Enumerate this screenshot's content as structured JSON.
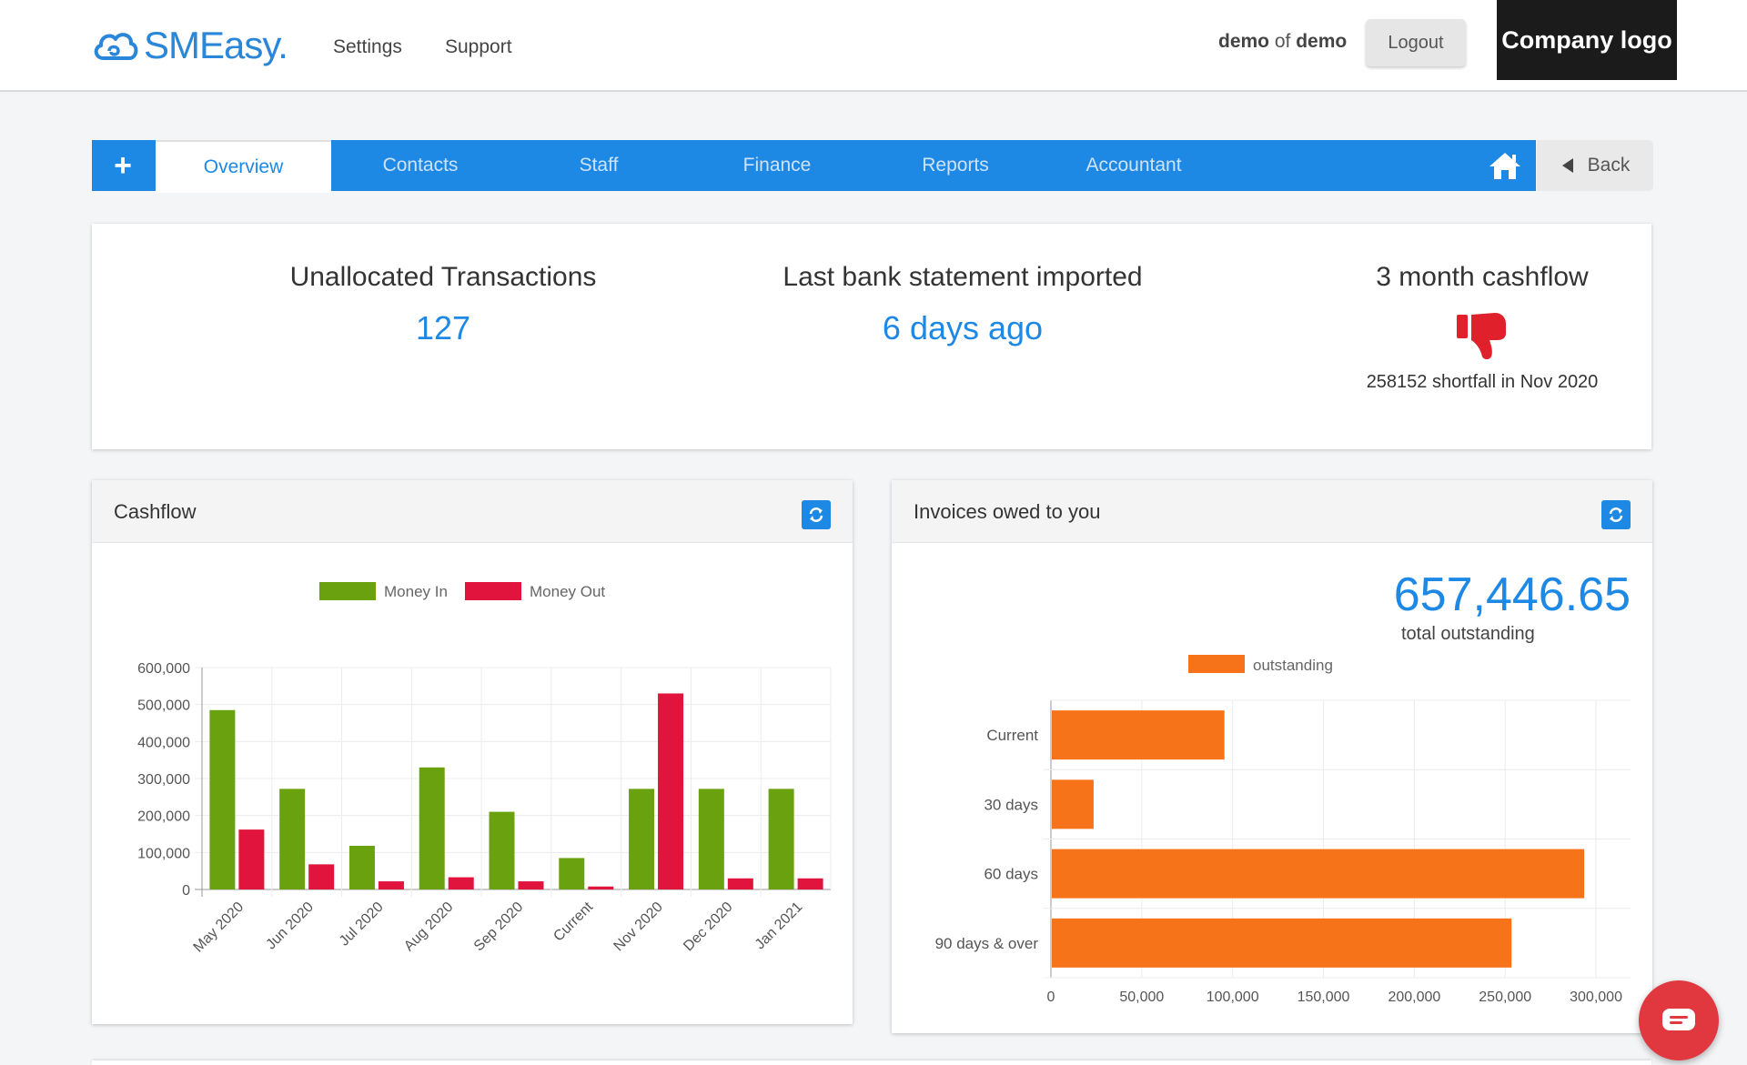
{
  "header": {
    "logo_text": "SMEasy.",
    "nav": [
      "Settings",
      "Support"
    ],
    "user_name": "demo",
    "user_of": "of",
    "user_org": "demo",
    "logout_label": "Logout",
    "company_logo": "Company logo"
  },
  "tabs": {
    "plus_icon": "plus-icon",
    "items": [
      "Overview",
      "Contacts",
      "Staff",
      "Finance",
      "Reports",
      "Accountant"
    ],
    "active": "Overview",
    "home_icon": "home-icon",
    "back_label": "Back"
  },
  "summary": {
    "unallocated_title": "Unallocated Transactions",
    "unallocated_value": "127",
    "bank_title": "Last bank statement imported",
    "bank_value": "6 days ago",
    "cashflow_title": "3 month cashflow",
    "cashflow_icon": "thumbs-down-icon",
    "cashflow_note": "258152 shortfall in Nov 2020"
  },
  "cashflow_panel": {
    "title": "Cashflow",
    "refresh_icon": "refresh-icon"
  },
  "invoices_panel": {
    "title": "Invoices owed to you",
    "refresh_icon": "refresh-icon",
    "total_value": "657,446.65",
    "total_label": "total outstanding"
  },
  "chat_icon": "chat-icon",
  "colors": {
    "primary": "#1e88e5",
    "money_in": "#6aa10f",
    "money_out": "#e0143c",
    "outstanding": "#f77319",
    "thumb_down": "#e0202a"
  },
  "chart_data": [
    {
      "type": "bar",
      "categories": [
        "May 2020",
        "Jun 2020",
        "Jul 2020",
        "Aug 2020",
        "Sep 2020",
        "Current",
        "Nov 2020",
        "Dec 2020",
        "Jan 2021"
      ],
      "series": [
        {
          "name": "Money In",
          "values": [
            485000,
            272000,
            118000,
            330000,
            210000,
            85000,
            272000,
            272000,
            272000
          ]
        },
        {
          "name": "Money Out",
          "values": [
            162000,
            68000,
            22000,
            33000,
            22000,
            8000,
            530000,
            30000,
            30000
          ]
        }
      ],
      "yticks": [
        "0",
        "100,000",
        "200,000",
        "300,000",
        "400,000",
        "500,000",
        "600,000"
      ],
      "ylim": [
        0,
        600000
      ],
      "legend": "top",
      "grid": true
    },
    {
      "type": "bar",
      "orientation": "horizontal",
      "categories": [
        "Current",
        "30 days",
        "60 days",
        "90 days & over"
      ],
      "series": [
        {
          "name": "outstanding",
          "values": [
            95000,
            23000,
            293000,
            253000
          ]
        }
      ],
      "xticks": [
        "0",
        "50,000",
        "100,000",
        "150,000",
        "200,000",
        "250,000",
        "300,000"
      ],
      "xlim": [
        0,
        319000
      ],
      "legend": "top",
      "grid": true
    }
  ]
}
